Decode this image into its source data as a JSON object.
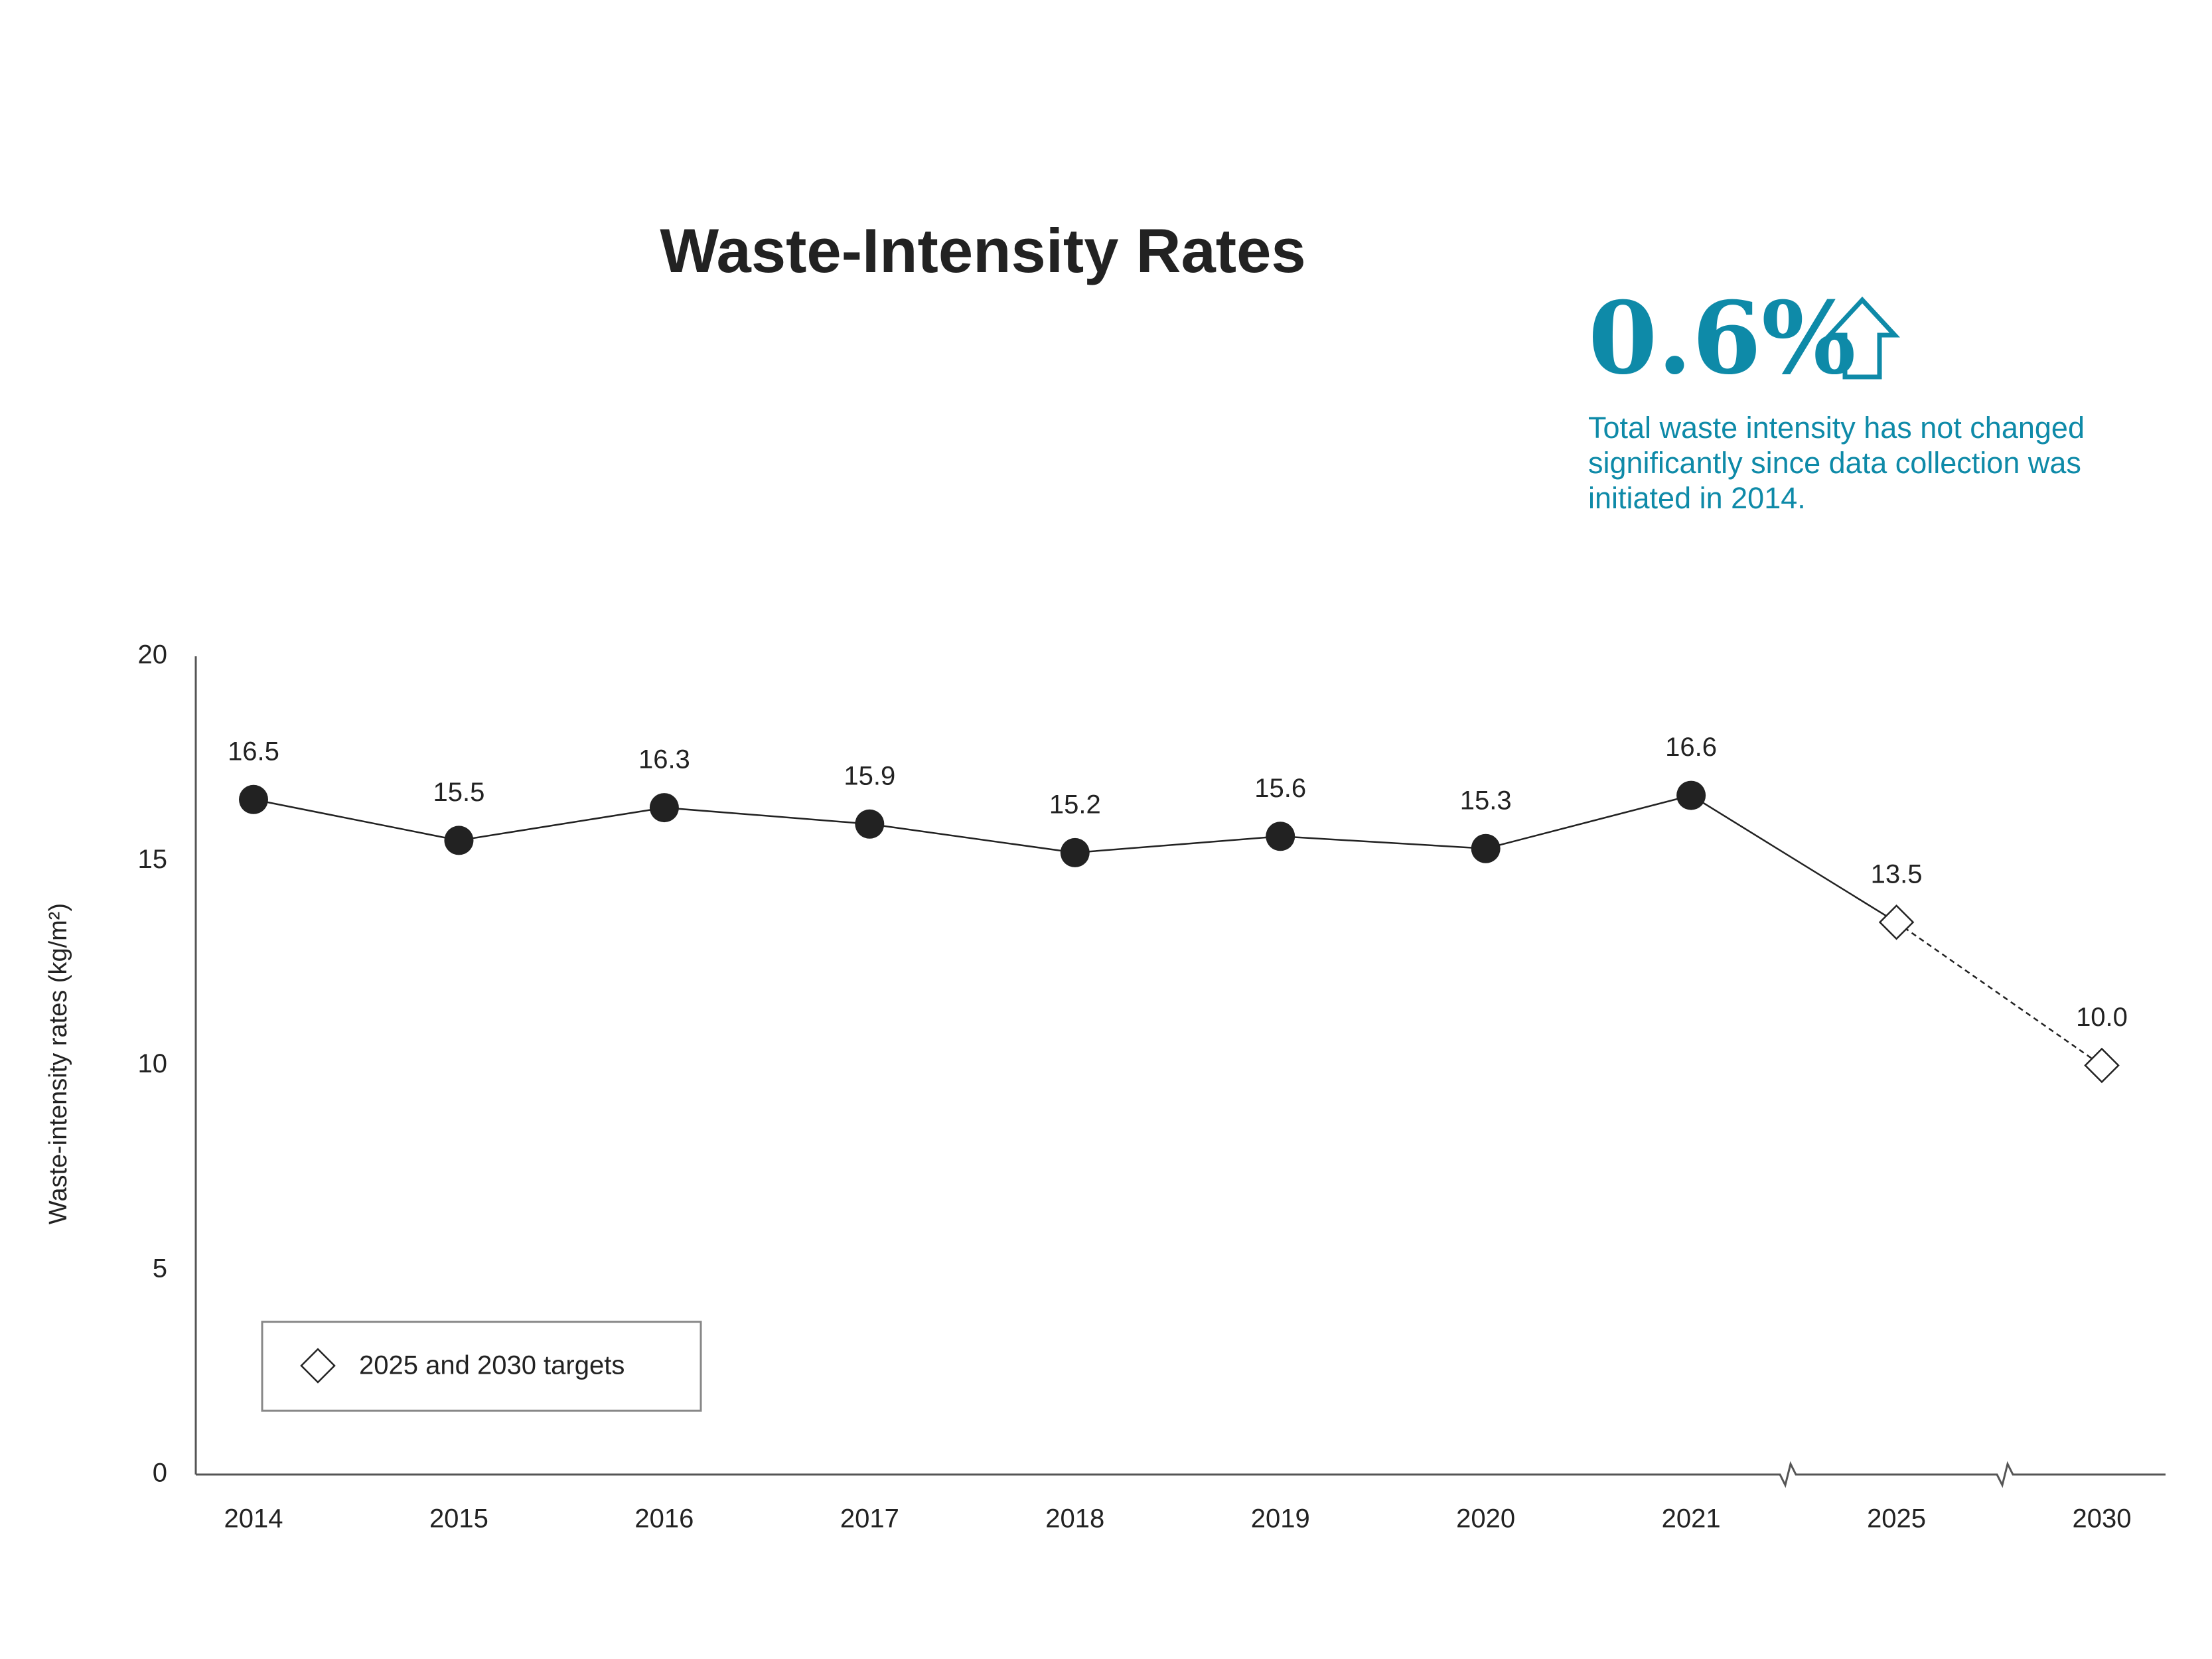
{
  "chart_data": {
    "type": "line",
    "title": "Waste-Intensity Rates",
    "y_label": "Waste-intensity rates (kg/m²)",
    "callout": {
      "value": 0.6,
      "label": "0.6%",
      "text": [
        "Total waste intensity has not changed",
        "significantly since data collection was",
        "initiated in 2014."
      ],
      "color": "#0e8aa8"
    },
    "categories": [
      "2014",
      "2015",
      "2016",
      "2017",
      "2018",
      "2019",
      "2020",
      "2021",
      "2025",
      "2030"
    ],
    "values": [
      16.5,
      15.5,
      16.3,
      15.9,
      15.2,
      15.6,
      15.3,
      16.6,
      null,
      null
    ],
    "value_labels": [
      "16.5",
      "15.5",
      "16.3",
      "15.9",
      "15.2",
      "15.6",
      "15.3",
      "16.6",
      null,
      null
    ],
    "color": "#222222",
    "series": [
      {
        "name": "2025 and 2030 targets",
        "color": "#ffffff",
        "values": [
          null,
          null,
          null,
          null,
          null,
          null,
          null,
          null,
          13.5,
          10.0
        ],
        "value_labels": [
          null,
          null,
          null,
          null,
          null,
          null,
          null,
          null,
          "13.5",
          "10.0"
        ]
      }
    ],
    "ylim": [
      0,
      20
    ],
    "yticks": [
      0,
      5,
      10,
      15,
      20
    ],
    "grid": false,
    "legend": "lower left"
  }
}
